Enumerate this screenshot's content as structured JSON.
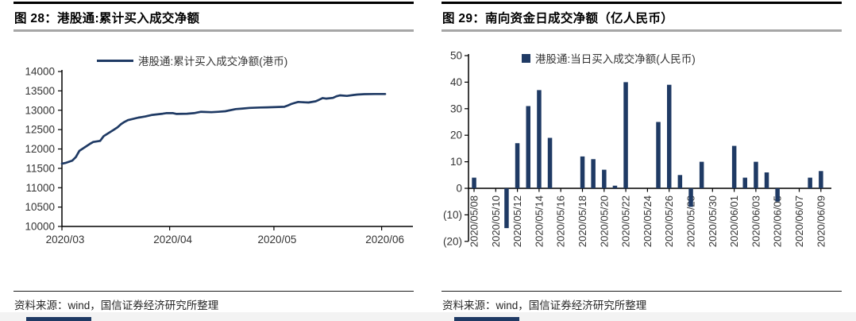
{
  "colors": {
    "series": "#1f3a64",
    "axis": "#000000",
    "tick_label": "#333333",
    "negative_tick_label": "#ff0000",
    "title_rule": "#a6a6a6",
    "top_border": "#000000",
    "bottom_strip": "#f3f3f3"
  },
  "panels": [
    {
      "title": "图 28：港股通:累计买入成交净额",
      "legend_label": "港股通:累计买入成交净额(港币)",
      "source_note": "资料来源：wind，国信证券经济研究所整理"
    },
    {
      "title": "图 29：南向资金日成交净额（亿人民币）",
      "legend_label": "港股通:当日买入成交净额(人民币)",
      "source_note": "资料来源：wind，国信证券经济研究所整理"
    }
  ],
  "chart_data": [
    {
      "type": "line",
      "title": "港股通:累计买入成交净额",
      "legend": [
        "港股通:累计买入成交净额(港币)"
      ],
      "ylim": [
        10000,
        14000
      ],
      "y_ticks": [
        14000,
        13500,
        13000,
        12500,
        12000,
        11500,
        11000,
        10500,
        10000
      ],
      "x_domain_days": [
        0,
        101
      ],
      "x_ticks": [
        {
          "label": "2020/03",
          "day": 0
        },
        {
          "label": "2020/04",
          "day": 31
        },
        {
          "label": "2020/05",
          "day": 61
        },
        {
          "label": "2020/06",
          "day": 92
        }
      ],
      "grid": false,
      "legend_position": "top",
      "points": [
        [
          0,
          11620
        ],
        [
          1,
          11640
        ],
        [
          3,
          11700
        ],
        [
          4,
          11790
        ],
        [
          5,
          11950
        ],
        [
          8,
          12130
        ],
        [
          9,
          12180
        ],
        [
          11,
          12210
        ],
        [
          12,
          12330
        ],
        [
          15,
          12500
        ],
        [
          16,
          12560
        ],
        [
          17,
          12640
        ],
        [
          18,
          12700
        ],
        [
          19,
          12745
        ],
        [
          22,
          12810
        ],
        [
          23,
          12825
        ],
        [
          24,
          12840
        ],
        [
          25,
          12860
        ],
        [
          26,
          12880
        ],
        [
          29,
          12910
        ],
        [
          30,
          12925
        ],
        [
          32,
          12925
        ],
        [
          33,
          12905
        ],
        [
          36,
          12910
        ],
        [
          38,
          12925
        ],
        [
          40,
          12960
        ],
        [
          43,
          12950
        ],
        [
          45,
          12960
        ],
        [
          47,
          12975
        ],
        [
          50,
          13030
        ],
        [
          52,
          13045
        ],
        [
          54,
          13060
        ],
        [
          57,
          13070
        ],
        [
          59,
          13075
        ],
        [
          64,
          13090
        ],
        [
          65,
          13125
        ],
        [
          66,
          13160
        ],
        [
          67,
          13190
        ],
        [
          68,
          13215
        ],
        [
          70,
          13205
        ],
        [
          71,
          13200
        ],
        [
          73,
          13230
        ],
        [
          74,
          13270
        ],
        [
          75,
          13315
        ],
        [
          76,
          13300
        ],
        [
          78,
          13320
        ],
        [
          79,
          13360
        ],
        [
          80,
          13385
        ],
        [
          82,
          13370
        ],
        [
          84,
          13395
        ],
        [
          85,
          13405
        ],
        [
          87,
          13415
        ],
        [
          90,
          13420
        ],
        [
          93,
          13420
        ]
      ]
    },
    {
      "type": "bar",
      "title": "南向资金日成交净额（亿人民币）",
      "legend": [
        "港股通:当日买入成交净额(人民币)"
      ],
      "ylim": [
        -20,
        50
      ],
      "y_ticks": [
        {
          "value": 50,
          "label": "50"
        },
        {
          "value": 40,
          "label": "40"
        },
        {
          "value": 30,
          "label": "30"
        },
        {
          "value": 20,
          "label": "20"
        },
        {
          "value": 10,
          "label": "10"
        },
        {
          "value": 0,
          "label": "0"
        },
        {
          "value": -10,
          "label": "(10)"
        },
        {
          "value": -20,
          "label": "(20)"
        }
      ],
      "x_domain_days": [
        -1,
        33
      ],
      "x_ticks": [
        {
          "label": "2020/05/08",
          "day": 0
        },
        {
          "label": "2020/05/10",
          "day": 2
        },
        {
          "label": "2020/05/12",
          "day": 4
        },
        {
          "label": "2020/05/14",
          "day": 6
        },
        {
          "label": "2020/05/16",
          "day": 8
        },
        {
          "label": "2020/05/18",
          "day": 10
        },
        {
          "label": "2020/05/20",
          "day": 12
        },
        {
          "label": "2020/05/22",
          "day": 14
        },
        {
          "label": "2020/05/24",
          "day": 16
        },
        {
          "label": "2020/05/26",
          "day": 18
        },
        {
          "label": "2020/05/28",
          "day": 20
        },
        {
          "label": "2020/05/30",
          "day": 22
        },
        {
          "label": "2020/06/01",
          "day": 24
        },
        {
          "label": "2020/06/03",
          "day": 26
        },
        {
          "label": "2020/06/05",
          "day": 28
        },
        {
          "label": "2020/06/07",
          "day": 30
        },
        {
          "label": "2020/06/09",
          "day": 32
        }
      ],
      "grid": false,
      "legend_position": "top",
      "bars": [
        {
          "date": "2020/05/08",
          "day": 0,
          "value": 4
        },
        {
          "date": "2020/05/11",
          "day": 3,
          "value": -15
        },
        {
          "date": "2020/05/12",
          "day": 4,
          "value": 17
        },
        {
          "date": "2020/05/13",
          "day": 5,
          "value": 31
        },
        {
          "date": "2020/05/14",
          "day": 6,
          "value": 37
        },
        {
          "date": "2020/05/15",
          "day": 7,
          "value": 19
        },
        {
          "date": "2020/05/18",
          "day": 10,
          "value": 12
        },
        {
          "date": "2020/05/19",
          "day": 11,
          "value": 11
        },
        {
          "date": "2020/05/20",
          "day": 12,
          "value": 7
        },
        {
          "date": "2020/05/21",
          "day": 13,
          "value": 1
        },
        {
          "date": "2020/05/22",
          "day": 14,
          "value": 40
        },
        {
          "date": "2020/05/25",
          "day": 17,
          "value": 25
        },
        {
          "date": "2020/05/26",
          "day": 18,
          "value": 39
        },
        {
          "date": "2020/05/27",
          "day": 19,
          "value": 5
        },
        {
          "date": "2020/05/28",
          "day": 20,
          "value": -7
        },
        {
          "date": "2020/05/29",
          "day": 21,
          "value": 10
        },
        {
          "date": "2020/06/01",
          "day": 24,
          "value": 16
        },
        {
          "date": "2020/06/02",
          "day": 25,
          "value": 4
        },
        {
          "date": "2020/06/03",
          "day": 26,
          "value": 10
        },
        {
          "date": "2020/06/04",
          "day": 27,
          "value": 6
        },
        {
          "date": "2020/06/05",
          "day": 28,
          "value": -5
        },
        {
          "date": "2020/06/08",
          "day": 31,
          "value": 4
        },
        {
          "date": "2020/06/09",
          "day": 32,
          "value": 6.5
        }
      ]
    }
  ]
}
